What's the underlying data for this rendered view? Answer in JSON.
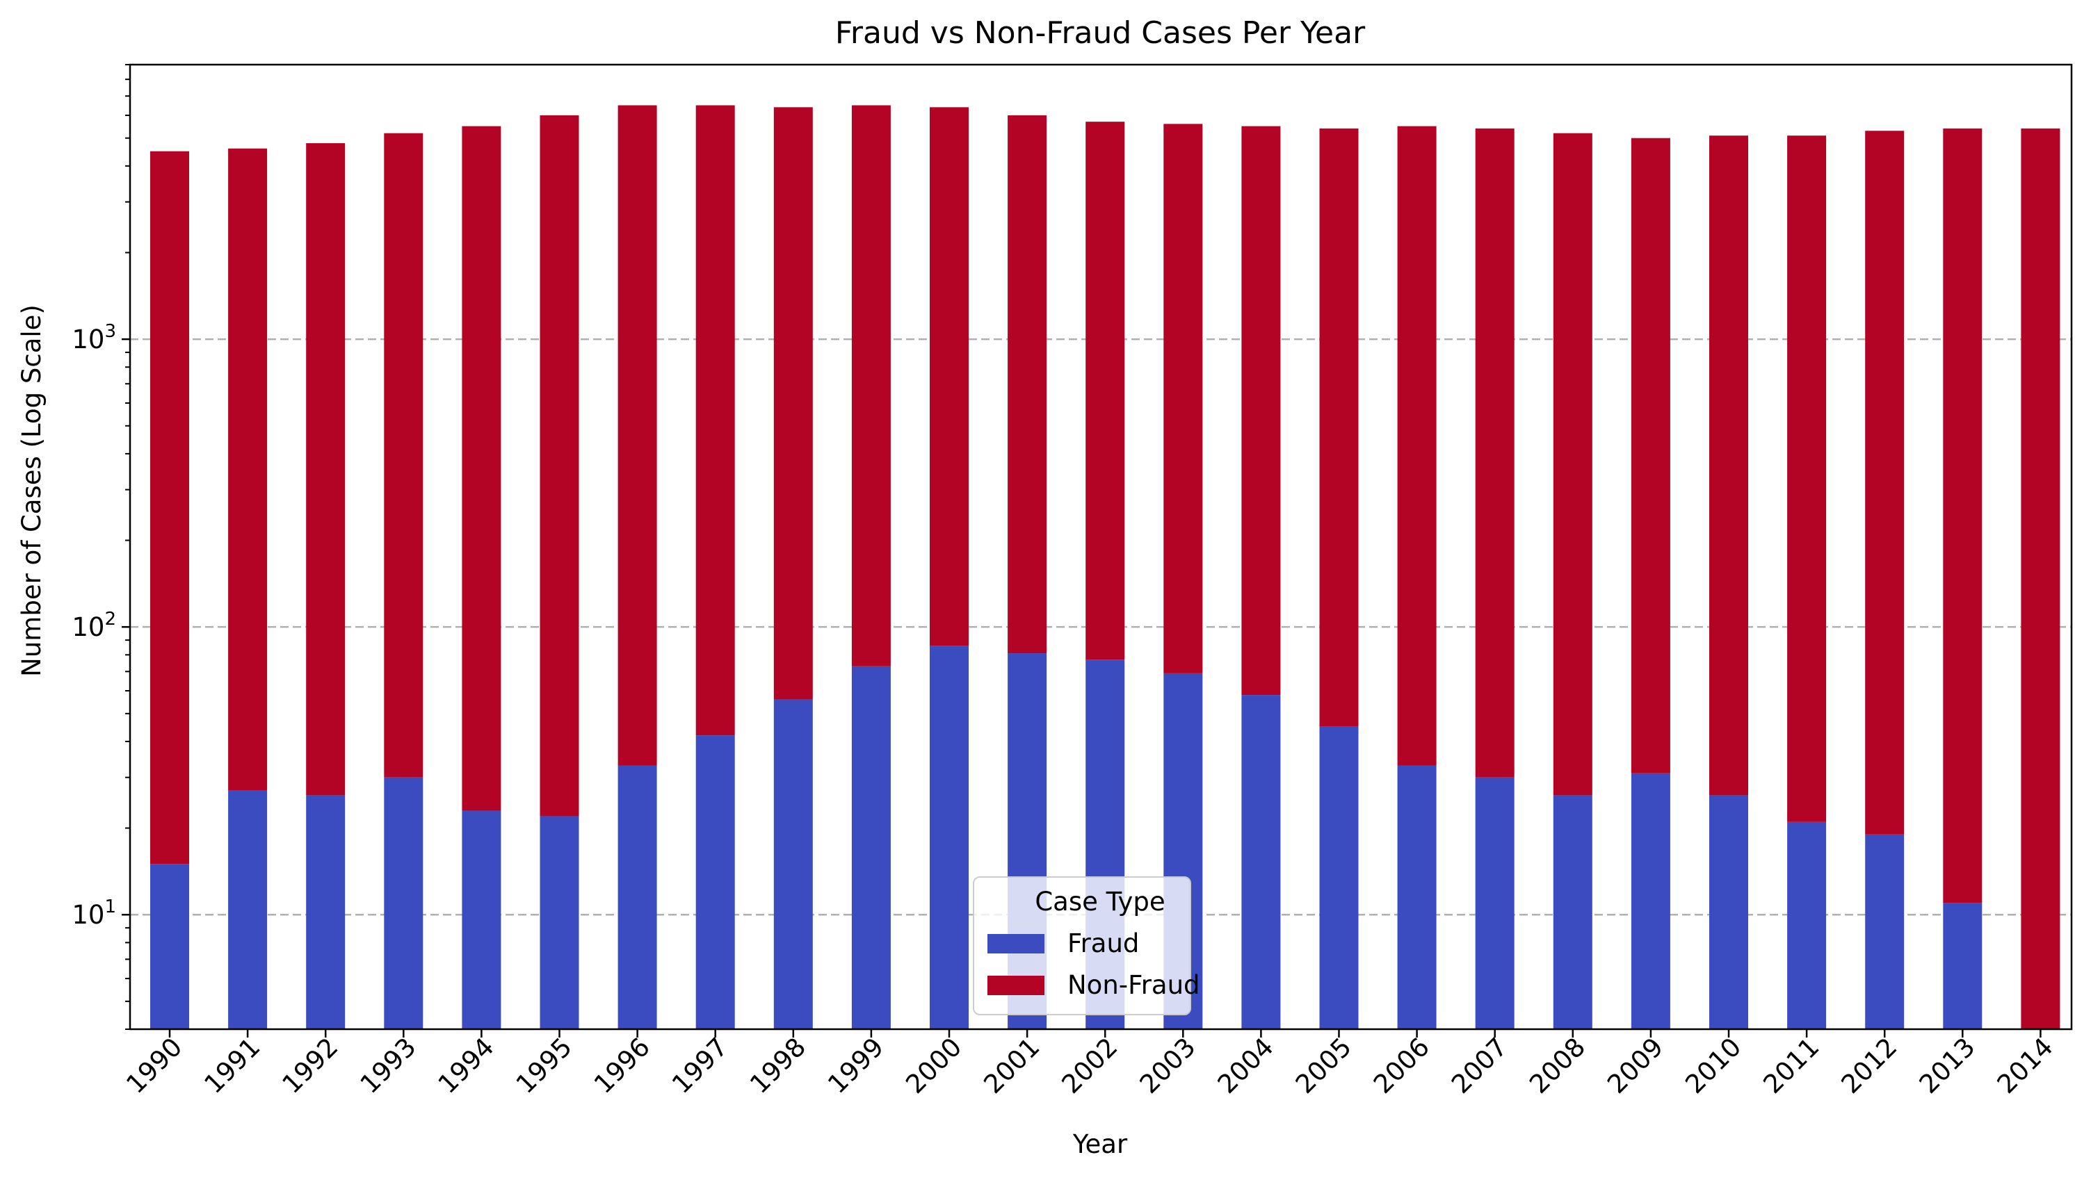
{
  "chart_data": {
    "type": "bar",
    "stacked": true,
    "title": "Fraud vs Non-Fraud Cases Per Year",
    "xlabel": "Year",
    "ylabel": "Number of Cases (Log Scale)",
    "yscale": "log",
    "ylim": [
      4.0,
      9000
    ],
    "yticks": [
      10,
      100,
      1000
    ],
    "ytick_labels": [
      {
        "base": "10",
        "exp": "1"
      },
      {
        "base": "10",
        "exp": "2"
      },
      {
        "base": "10",
        "exp": "3"
      }
    ],
    "grid": {
      "axis": "y",
      "style": "dashed"
    },
    "legend": {
      "title": "Case Type",
      "placement": "bottom-center"
    },
    "categories": [
      "1990",
      "1991",
      "1992",
      "1993",
      "1994",
      "1995",
      "1996",
      "1997",
      "1998",
      "1999",
      "2000",
      "2001",
      "2002",
      "2003",
      "2004",
      "2005",
      "2006",
      "2007",
      "2008",
      "2009",
      "2010",
      "2011",
      "2012",
      "2013",
      "2014"
    ],
    "series": [
      {
        "name": "Fraud",
        "color": "#3b4cc0",
        "values": [
          15,
          27,
          26,
          30,
          23,
          22,
          33,
          42,
          56,
          73,
          86,
          81,
          77,
          69,
          58,
          45,
          33,
          30,
          26,
          31,
          26,
          21,
          19,
          11,
          0
        ]
      },
      {
        "name": "Non-Fraud",
        "color": "#b40426",
        "values": [
          4485,
          4573,
          4774,
          5170,
          5477,
          5978,
          6467,
          6458,
          6344,
          6427,
          6314,
          5919,
          5623,
          5531,
          5442,
          5355,
          5467,
          5370,
          5174,
          4969,
          5074,
          5079,
          5281,
          5389,
          5400
        ]
      }
    ]
  }
}
